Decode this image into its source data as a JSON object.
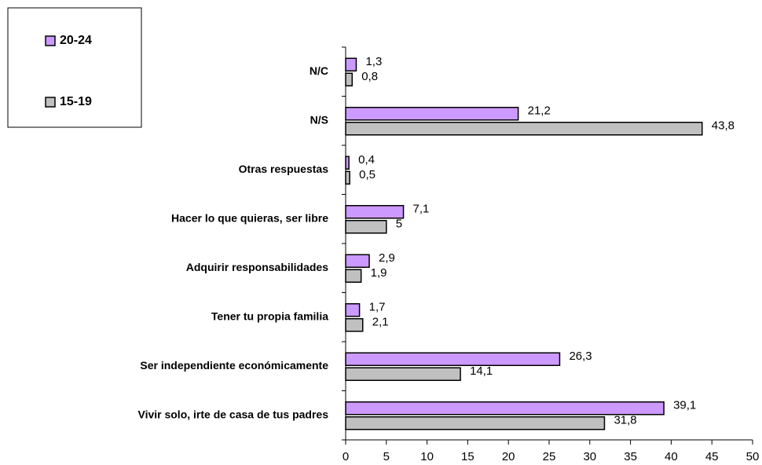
{
  "chart_data": {
    "type": "bar",
    "orientation": "horizontal",
    "categories": [
      "N/C",
      "N/S",
      "Otras respuestas",
      "Hacer lo que quieras, ser libre",
      "Adquirir responsabilidades",
      "Tener tu propia familia",
      "Ser independiente económicamente",
      "Vivir solo, irte de casa de tus padres"
    ],
    "series": [
      {
        "name": "20-24",
        "color": "#cc99ff",
        "values": [
          1.3,
          21.2,
          0.4,
          7.1,
          2.9,
          1.7,
          26.3,
          39.1
        ],
        "value_labels": [
          "1,3",
          "21,2",
          "0,4",
          "7,1",
          "2,9",
          "1,7",
          "26,3",
          "39,1"
        ]
      },
      {
        "name": "15-19",
        "color": "#c0c0c0",
        "values": [
          0.8,
          43.8,
          0.5,
          5,
          1.9,
          2.1,
          14.1,
          31.8
        ],
        "value_labels": [
          "0,8",
          "43,8",
          "0,5",
          "5",
          "1,9",
          "2,1",
          "14,1",
          "31,8"
        ]
      }
    ],
    "xlim": [
      0,
      50
    ],
    "xticks": [
      0,
      5,
      10,
      15,
      20,
      25,
      30,
      35,
      40,
      45,
      50
    ],
    "legend": "top-left"
  }
}
